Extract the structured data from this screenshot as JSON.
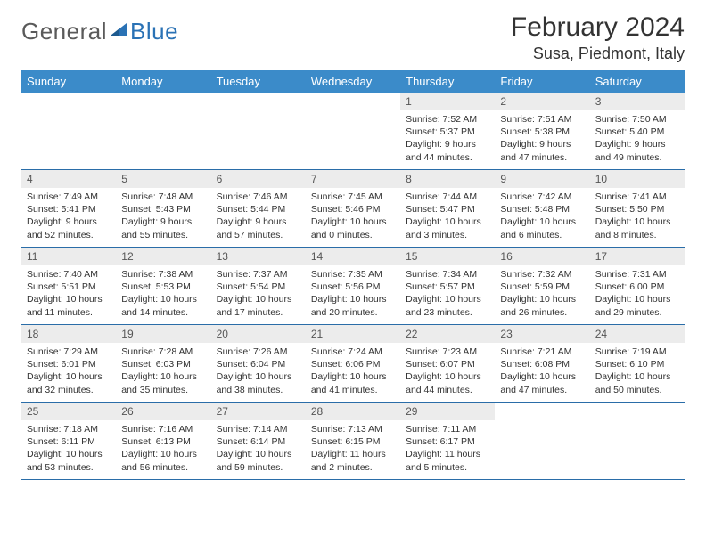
{
  "brand": {
    "general": "General",
    "blue": "Blue"
  },
  "title": "February 2024",
  "location": "Susa, Piedmont, Italy",
  "colors": {
    "header_bg": "#3b8bc9",
    "border": "#2a6da8",
    "daynum_bg": "#ececec",
    "logo_gray": "#5a5a5a",
    "logo_blue": "#2a72b5"
  },
  "dayNames": [
    "Sunday",
    "Monday",
    "Tuesday",
    "Wednesday",
    "Thursday",
    "Friday",
    "Saturday"
  ],
  "startWeekday": 4,
  "daysInMonth": 29,
  "days": {
    "1": {
      "sunrise": "7:52 AM",
      "sunset": "5:37 PM",
      "daylight": "9 hours and 44 minutes."
    },
    "2": {
      "sunrise": "7:51 AM",
      "sunset": "5:38 PM",
      "daylight": "9 hours and 47 minutes."
    },
    "3": {
      "sunrise": "7:50 AM",
      "sunset": "5:40 PM",
      "daylight": "9 hours and 49 minutes."
    },
    "4": {
      "sunrise": "7:49 AM",
      "sunset": "5:41 PM",
      "daylight": "9 hours and 52 minutes."
    },
    "5": {
      "sunrise": "7:48 AM",
      "sunset": "5:43 PM",
      "daylight": "9 hours and 55 minutes."
    },
    "6": {
      "sunrise": "7:46 AM",
      "sunset": "5:44 PM",
      "daylight": "9 hours and 57 minutes."
    },
    "7": {
      "sunrise": "7:45 AM",
      "sunset": "5:46 PM",
      "daylight": "10 hours and 0 minutes."
    },
    "8": {
      "sunrise": "7:44 AM",
      "sunset": "5:47 PM",
      "daylight": "10 hours and 3 minutes."
    },
    "9": {
      "sunrise": "7:42 AM",
      "sunset": "5:48 PM",
      "daylight": "10 hours and 6 minutes."
    },
    "10": {
      "sunrise": "7:41 AM",
      "sunset": "5:50 PM",
      "daylight": "10 hours and 8 minutes."
    },
    "11": {
      "sunrise": "7:40 AM",
      "sunset": "5:51 PM",
      "daylight": "10 hours and 11 minutes."
    },
    "12": {
      "sunrise": "7:38 AM",
      "sunset": "5:53 PM",
      "daylight": "10 hours and 14 minutes."
    },
    "13": {
      "sunrise": "7:37 AM",
      "sunset": "5:54 PM",
      "daylight": "10 hours and 17 minutes."
    },
    "14": {
      "sunrise": "7:35 AM",
      "sunset": "5:56 PM",
      "daylight": "10 hours and 20 minutes."
    },
    "15": {
      "sunrise": "7:34 AM",
      "sunset": "5:57 PM",
      "daylight": "10 hours and 23 minutes."
    },
    "16": {
      "sunrise": "7:32 AM",
      "sunset": "5:59 PM",
      "daylight": "10 hours and 26 minutes."
    },
    "17": {
      "sunrise": "7:31 AM",
      "sunset": "6:00 PM",
      "daylight": "10 hours and 29 minutes."
    },
    "18": {
      "sunrise": "7:29 AM",
      "sunset": "6:01 PM",
      "daylight": "10 hours and 32 minutes."
    },
    "19": {
      "sunrise": "7:28 AM",
      "sunset": "6:03 PM",
      "daylight": "10 hours and 35 minutes."
    },
    "20": {
      "sunrise": "7:26 AM",
      "sunset": "6:04 PM",
      "daylight": "10 hours and 38 minutes."
    },
    "21": {
      "sunrise": "7:24 AM",
      "sunset": "6:06 PM",
      "daylight": "10 hours and 41 minutes."
    },
    "22": {
      "sunrise": "7:23 AM",
      "sunset": "6:07 PM",
      "daylight": "10 hours and 44 minutes."
    },
    "23": {
      "sunrise": "7:21 AM",
      "sunset": "6:08 PM",
      "daylight": "10 hours and 47 minutes."
    },
    "24": {
      "sunrise": "7:19 AM",
      "sunset": "6:10 PM",
      "daylight": "10 hours and 50 minutes."
    },
    "25": {
      "sunrise": "7:18 AM",
      "sunset": "6:11 PM",
      "daylight": "10 hours and 53 minutes."
    },
    "26": {
      "sunrise": "7:16 AM",
      "sunset": "6:13 PM",
      "daylight": "10 hours and 56 minutes."
    },
    "27": {
      "sunrise": "7:14 AM",
      "sunset": "6:14 PM",
      "daylight": "10 hours and 59 minutes."
    },
    "28": {
      "sunrise": "7:13 AM",
      "sunset": "6:15 PM",
      "daylight": "11 hours and 2 minutes."
    },
    "29": {
      "sunrise": "7:11 AM",
      "sunset": "6:17 PM",
      "daylight": "11 hours and 5 minutes."
    }
  },
  "labels": {
    "sunrise": "Sunrise:",
    "sunset": "Sunset:",
    "daylight": "Daylight:"
  }
}
